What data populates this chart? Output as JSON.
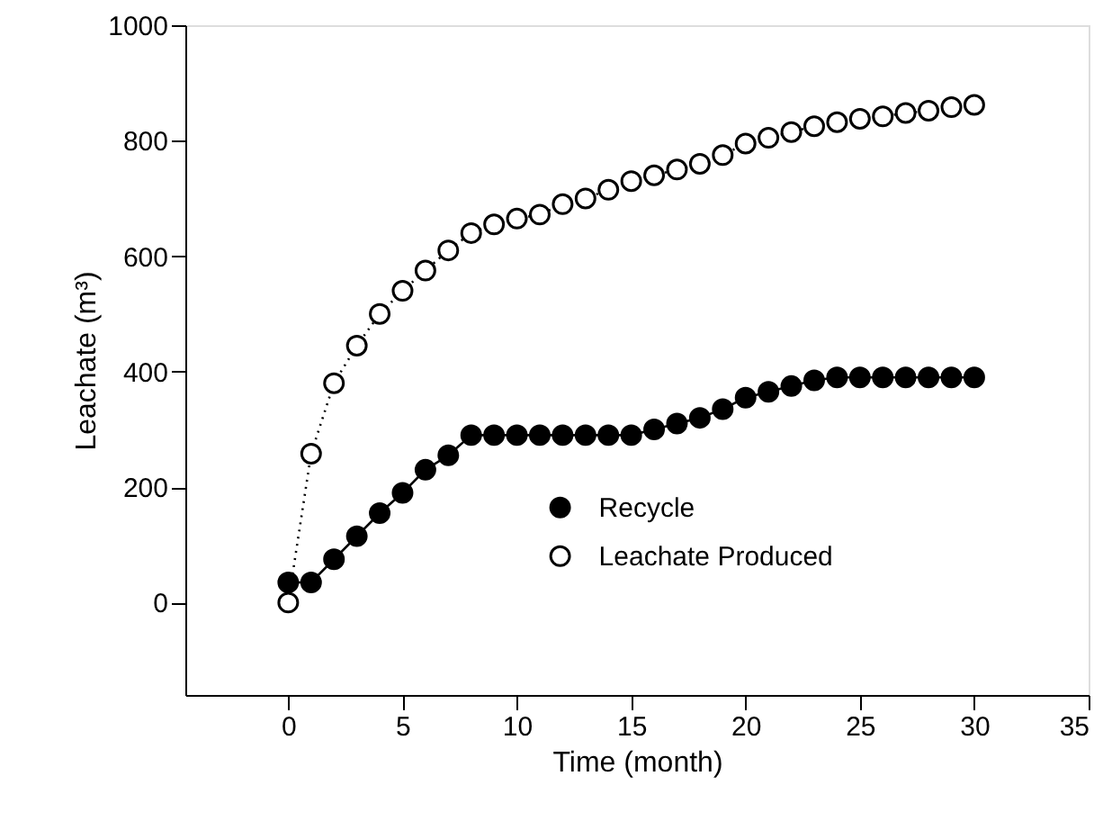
{
  "chart_data": {
    "type": "line",
    "xlabel": "Time (month)",
    "ylabel": "Leachate (m³)",
    "x": [
      0,
      1,
      2,
      3,
      4,
      5,
      6,
      7,
      8,
      9,
      10,
      11,
      12,
      13,
      14,
      15,
      16,
      17,
      18,
      19,
      20,
      21,
      22,
      23,
      24,
      25,
      26,
      27,
      28,
      29,
      30
    ],
    "series": [
      {
        "name": "Recycle",
        "color": "#000000",
        "line_style": "solid",
        "marker": "circle",
        "values": [
          35,
          35,
          75,
          115,
          155,
          190,
          230,
          255,
          290,
          290,
          290,
          290,
          290,
          290,
          290,
          290,
          300,
          310,
          320,
          335,
          355,
          365,
          375,
          385,
          390,
          390,
          390,
          390,
          390,
          390,
          390
        ]
      },
      {
        "name": "Leachate Produced",
        "color": "#000000",
        "line_style": "dotted",
        "marker": "circle",
        "values": [
          0,
          258,
          380,
          445,
          500,
          540,
          575,
          610,
          640,
          655,
          665,
          672,
          690,
          700,
          715,
          730,
          740,
          750,
          760,
          775,
          795,
          805,
          815,
          825,
          832,
          838,
          842,
          848,
          852,
          858,
          862
        ]
      }
    ],
    "xlim": [
      -4.5,
      35
    ],
    "xticks": [
      0,
      5,
      10,
      15,
      20,
      25,
      30,
      35
    ],
    "ylim": [
      -160,
      1000
    ],
    "yticks": [
      0,
      200,
      400,
      600,
      800,
      1000
    ],
    "grid": false,
    "legend": "bottom right"
  }
}
